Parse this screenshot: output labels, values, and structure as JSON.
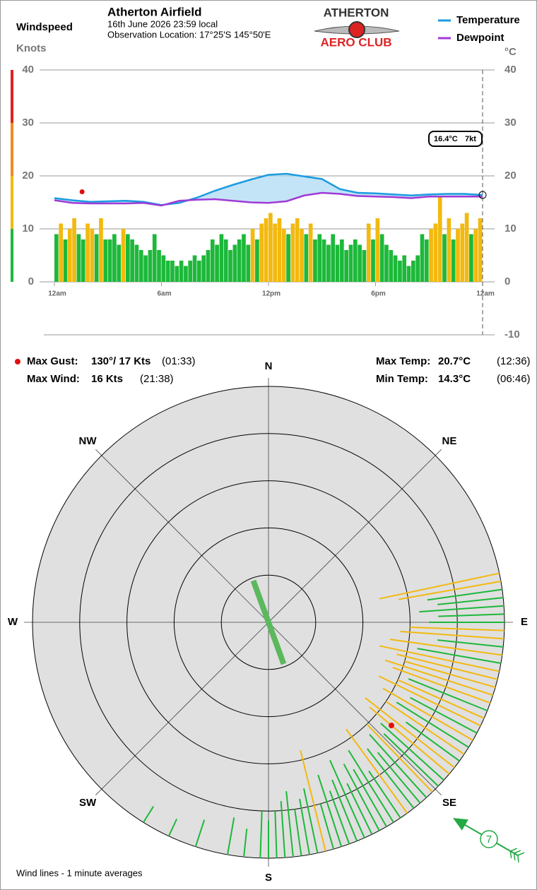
{
  "header": {
    "title": "Atherton Airfield",
    "datetime": "16th June 2026  23:59 local",
    "location": "Observation Location: 17°25'S 145°50'E",
    "logo_top": "ATHERTON",
    "logo_bottom": "AERO CLUB"
  },
  "labels": {
    "windspeed": "Windspeed",
    "knots": "Knots",
    "celsius": "°C",
    "footnote": "Wind lines - 1 minute averages"
  },
  "stats": {
    "max_gust": {
      "title": "Max Gust:",
      "label": "130°/ 17 Kts",
      "time": "(01:33)",
      "direction": 130,
      "speed": 17,
      "hour": 1.55
    },
    "max_wind": {
      "title": "Max Wind:",
      "label": "16 Kts",
      "time": "(21:38)"
    },
    "max_temp": {
      "title": "Max Temp:",
      "label": "20.7°C",
      "time": "(12:36)"
    },
    "min_temp": {
      "title": "Min Temp:",
      "label": "14.3°C",
      "time": "(06:46)"
    }
  },
  "current": {
    "temperature": {
      "value": 16.4,
      "label": "16.4°C"
    },
    "wind": {
      "value": 7,
      "label": "7kt"
    },
    "direction": 120
  },
  "chart_data": [
    {
      "type": "bar",
      "x": [
        0,
        0.25,
        0.5,
        0.75,
        1,
        1.25,
        1.5,
        1.75,
        2,
        2.25,
        2.5,
        2.75,
        3,
        3.25,
        3.5,
        3.75,
        4,
        4.25,
        4.5,
        4.75,
        5,
        5.25,
        5.5,
        5.75,
        6,
        6.25,
        6.5,
        6.75,
        7,
        7.25,
        7.5,
        7.75,
        8,
        8.25,
        8.5,
        8.75,
        9,
        9.25,
        9.5,
        9.75,
        10,
        10.25,
        10.5,
        10.75,
        11,
        11.25,
        11.5,
        11.75,
        12,
        12.25,
        12.5,
        12.75,
        13,
        13.25,
        13.5,
        13.75,
        14,
        14.25,
        14.5,
        14.75,
        15,
        15.25,
        15.5,
        15.75,
        16,
        16.25,
        16.5,
        16.75,
        17,
        17.25,
        17.5,
        17.75,
        18,
        18.25,
        18.5,
        18.75,
        19,
        19.25,
        19.5,
        19.75,
        20,
        20.25,
        20.5,
        20.75,
        21,
        21.25,
        21.5,
        21.75,
        22,
        22.25,
        22.5,
        22.75,
        23,
        23.25,
        23.5,
        23.75
      ],
      "values": [
        9,
        11,
        8,
        10,
        12,
        9,
        8,
        11,
        10,
        9,
        12,
        8,
        8,
        9,
        7,
        10,
        9,
        8,
        7,
        6,
        5,
        6,
        9,
        6,
        5,
        4,
        4,
        3,
        4,
        3,
        4,
        5,
        4,
        5,
        6,
        8,
        7,
        9,
        8,
        6,
        7,
        8,
        9,
        7,
        10,
        8,
        11,
        12,
        13,
        11,
        12,
        10,
        9,
        11,
        12,
        10,
        9,
        11,
        8,
        9,
        8,
        7,
        9,
        7,
        8,
        6,
        7,
        8,
        7,
        6,
        11,
        8,
        12,
        9,
        7,
        6,
        5,
        4,
        5,
        3,
        4,
        5,
        9,
        8,
        10,
        11,
        16,
        9,
        12,
        8,
        10,
        11,
        13,
        9,
        10,
        12
      ],
      "color_scale": [
        {
          "from": 0,
          "to": 10,
          "color": "#1db83a"
        },
        {
          "from": 10,
          "to": 20,
          "color": "#f2b90f"
        },
        {
          "from": 20,
          "to": 30,
          "color": "#f08a24"
        },
        {
          "from": 30,
          "to": 40,
          "color": "#dd2222"
        }
      ],
      "xlim": [
        0,
        24
      ],
      "xticks": [
        {
          "value": 0,
          "label": "12am"
        },
        {
          "value": 6,
          "label": "6am"
        },
        {
          "value": 12,
          "label": "12pm"
        },
        {
          "value": 18,
          "label": "6pm"
        },
        {
          "value": 24,
          "label": "12am"
        }
      ],
      "ylim": [
        0,
        40
      ],
      "yticks": [
        0,
        10,
        20,
        30,
        40
      ],
      "y2lim": [
        -10,
        40
      ],
      "y2ticks": [
        -10,
        0,
        10,
        20,
        30,
        40
      ],
      "grid": true,
      "series": [
        {
          "name": "Temperature",
          "color": "#1a9be0",
          "axis": "y2",
          "x": [
            0,
            1,
            2,
            3,
            4,
            5,
            6,
            7,
            8,
            9,
            10,
            11,
            12,
            13,
            14,
            15,
            16,
            17,
            18,
            19,
            20,
            21,
            22,
            23,
            24
          ],
          "values": [
            15.8,
            15.4,
            15.1,
            15.2,
            15.3,
            15.1,
            14.5,
            14.9,
            15.9,
            17.2,
            18.3,
            19.3,
            20.2,
            20.4,
            19.9,
            19.4,
            17.5,
            16.8,
            16.7,
            16.5,
            16.3,
            16.5,
            16.6,
            16.6,
            16.4
          ]
        },
        {
          "name": "Dewpoint",
          "color": "#a03ad6",
          "axis": "y2",
          "x": [
            0,
            1,
            2,
            3,
            4,
            5,
            6,
            7,
            8,
            9,
            10,
            11,
            12,
            13,
            14,
            15,
            16,
            17,
            18,
            19,
            20,
            21,
            22,
            23,
            24
          ],
          "values": [
            15.4,
            14.9,
            14.8,
            14.8,
            14.8,
            14.9,
            14.4,
            15.3,
            15.5,
            15.6,
            15.3,
            15.0,
            14.9,
            15.2,
            16.3,
            16.8,
            16.6,
            16.2,
            16.1,
            16.0,
            15.8,
            16.1,
            16.1,
            16.1,
            16.1
          ]
        }
      ]
    },
    {
      "type": "polar",
      "directions": [
        "N",
        "NE",
        "E",
        "SE",
        "S",
        "SW",
        "W",
        "NW"
      ],
      "rlim": [
        0,
        25
      ],
      "rticks": [
        5,
        10,
        15,
        20,
        25
      ],
      "mean_direction": 160,
      "wind_direction": [
        78,
        80,
        82,
        84,
        86,
        88,
        90,
        92,
        94,
        96,
        98,
        100,
        102,
        104,
        106,
        108,
        110,
        112,
        114,
        116,
        118,
        120,
        122,
        124,
        126,
        128,
        130,
        132,
        134,
        136,
        138,
        140,
        142,
        144,
        146,
        148,
        150,
        152,
        154,
        156,
        158,
        160,
        162,
        164,
        166,
        168,
        170,
        172,
        174,
        176,
        178,
        180,
        182,
        186,
        190,
        198,
        205,
        212
      ],
      "wind_speed": [
        13,
        11,
        8,
        7,
        9,
        7,
        8,
        10,
        11,
        7,
        12,
        9,
        13,
        11,
        10,
        12,
        11,
        9,
        10,
        12,
        8,
        11,
        9,
        10,
        7,
        12,
        11,
        9,
        8,
        10,
        9,
        7,
        8,
        11,
        6,
        9,
        7,
        8,
        6,
        9,
        7,
        6,
        8,
        5,
        11,
        7,
        6,
        5,
        7,
        6,
        5,
        4,
        5,
        3,
        4,
        3,
        2,
        2
      ]
    }
  ]
}
